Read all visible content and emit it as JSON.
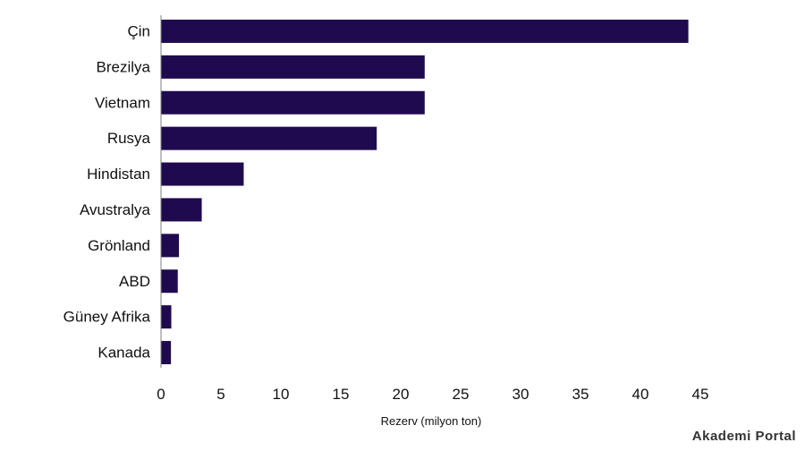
{
  "chart_data": {
    "type": "bar",
    "orientation": "horizontal",
    "categories": [
      "Çin",
      "Brezilya",
      "Vietnam",
      "Rusya",
      "Hindistan",
      "Avustralya",
      "Grönland",
      "ABD",
      "Güney Afrika",
      "Kanada"
    ],
    "values": [
      44,
      22,
      22,
      18,
      6.9,
      3.4,
      1.5,
      1.4,
      0.86,
      0.83
    ],
    "title": "",
    "xlabel": "Rezerv (milyon ton)",
    "ylabel": "",
    "xlim": [
      0,
      45
    ],
    "xticks": [
      "0",
      "5",
      "10",
      "15",
      "20",
      "25",
      "30",
      "35",
      "40",
      "45"
    ],
    "grid": false,
    "legend": "none",
    "bar_color": "#1f0a4f",
    "axis_color": "#7f7f7f"
  },
  "watermark": "Akademi Portal"
}
